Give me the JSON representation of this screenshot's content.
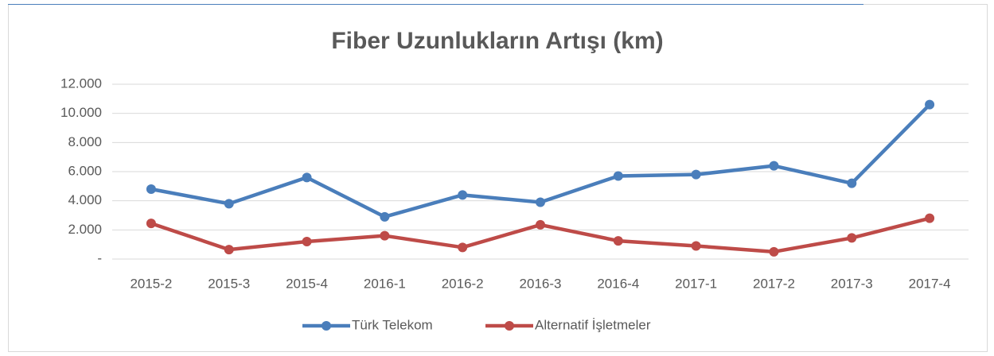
{
  "chart_data": {
    "type": "line",
    "title": "Fiber Uzunlukların Artışı (km)",
    "categories": [
      "2015-2",
      "2015-3",
      "2015-4",
      "2016-1",
      "2016-2",
      "2016-3",
      "2016-4",
      "2017-1",
      "2017-2",
      "2017-3",
      "2017-4"
    ],
    "series": [
      {
        "name": "Türk Telekom",
        "color": "#4a7ebb",
        "values": [
          4800,
          3800,
          5600,
          2900,
          4400,
          3900,
          5700,
          5800,
          6400,
          5200,
          10600
        ]
      },
      {
        "name": "Alternatif İşletmeler",
        "color": "#be4b48",
        "values": [
          2450,
          650,
          1200,
          1600,
          800,
          2350,
          1250,
          900,
          500,
          1450,
          2800
        ]
      }
    ],
    "ylim": [
      0,
      12000
    ],
    "yticks": [
      {
        "value": 0,
        "label": "-"
      },
      {
        "value": 2000,
        "label": "2.000"
      },
      {
        "value": 4000,
        "label": "4.000"
      },
      {
        "value": 6000,
        "label": "6.000"
      },
      {
        "value": 8000,
        "label": "8.000"
      },
      {
        "value": 10000,
        "label": "10.000"
      },
      {
        "value": 12000,
        "label": "12.000"
      }
    ],
    "grid": true,
    "legend": "bottom"
  }
}
